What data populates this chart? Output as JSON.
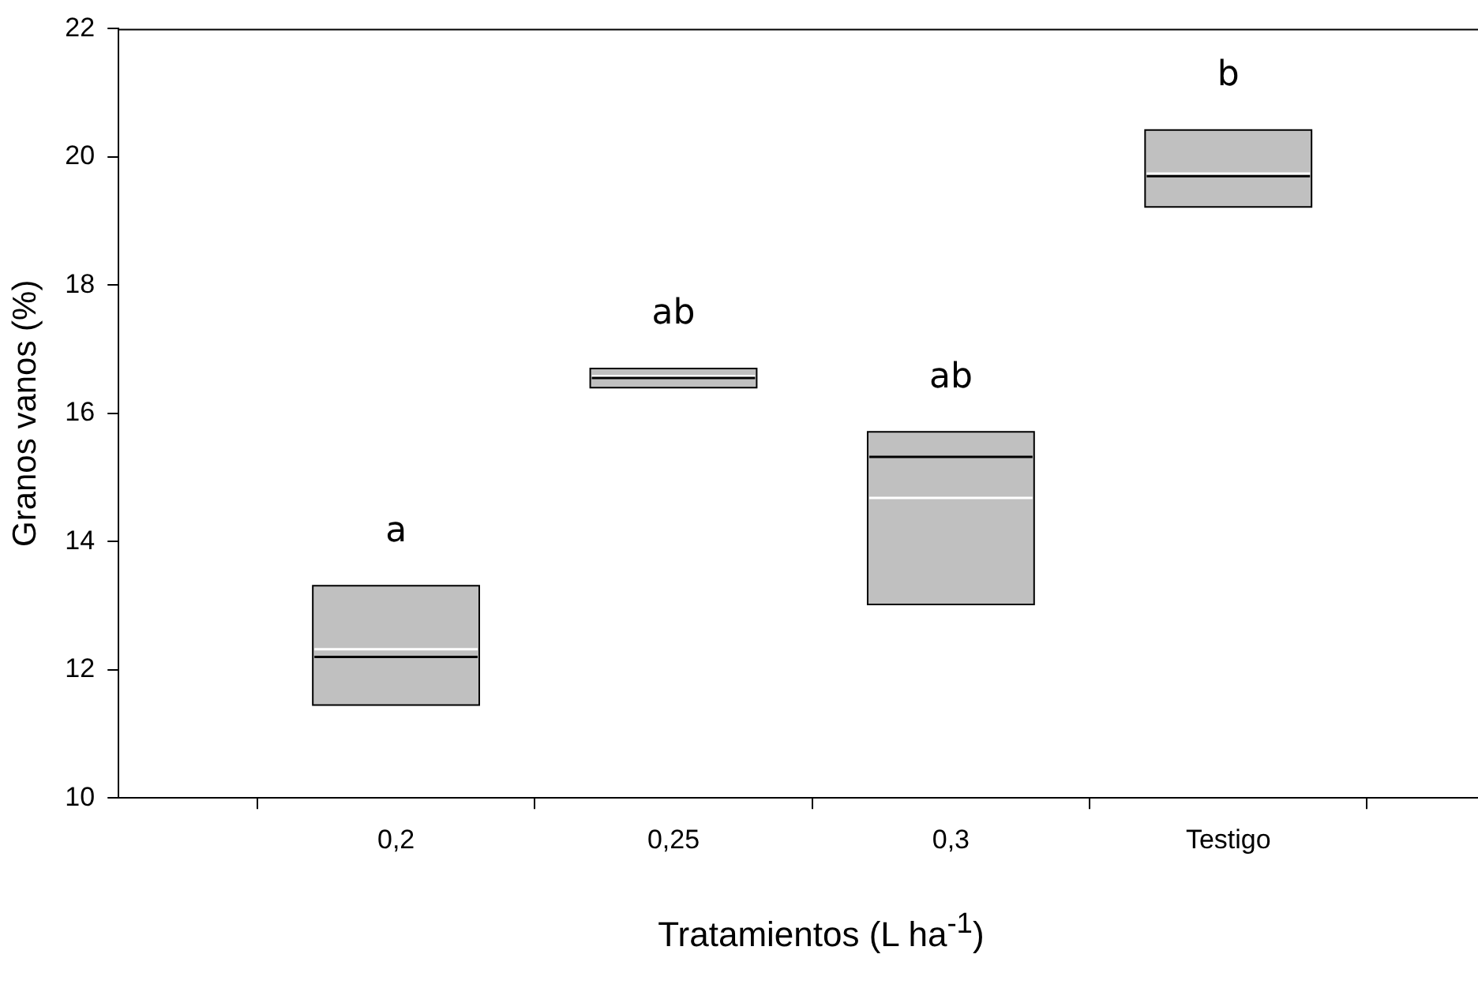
{
  "chart_data": {
    "type": "box",
    "xlabel": "Tratamientos (L ha$^{-1}$)",
    "ylabel": "Granos vanos (%)",
    "categories": [
      "0,2",
      "0,25",
      "0,3",
      "Testigo"
    ],
    "color": "#c0c0c0",
    "boxes": [
      {
        "low": 11.45,
        "q1": 11.45,
        "median": 12.2,
        "mean": 12.32,
        "q3": 13.31,
        "high": 13.31
      },
      {
        "low": 16.4,
        "q1": 16.4,
        "median": 16.55,
        "mean": 16.58,
        "q3": 16.7,
        "high": 16.7
      },
      {
        "low": 13.02,
        "q1": 13.02,
        "median": 15.32,
        "mean": 14.68,
        "q3": 15.71,
        "high": 15.71
      },
      {
        "low": 19.22,
        "q1": 19.22,
        "median": 19.7,
        "mean": 19.74,
        "q3": 20.42,
        "high": 20.42
      }
    ],
    "ylim": [
      10,
      22
    ],
    "yticks": [
      10,
      12,
      14,
      16,
      18,
      20,
      22
    ],
    "grid": false,
    "legend": false,
    "annotations": [
      "a",
      "ab",
      "ab",
      "b"
    ]
  }
}
